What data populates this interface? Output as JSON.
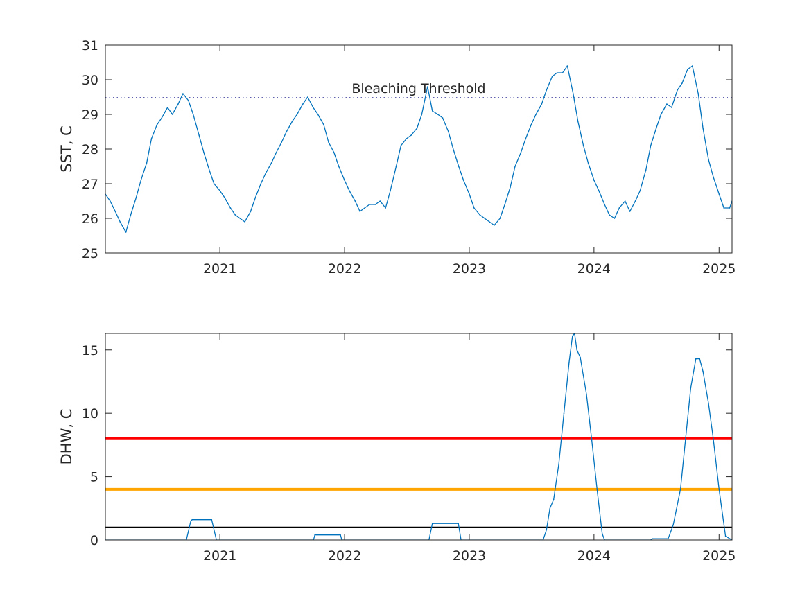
{
  "chart_data": [
    {
      "type": "line",
      "ylabel": "SST, C",
      "xlim": [
        "2020-02-01",
        "2025-02-08"
      ],
      "ylim": [
        25,
        31
      ],
      "x_tick_labels": [
        "2021",
        "2022",
        "2023",
        "2024",
        "2025"
      ],
      "x_tick_dates": [
        "2021-01-01",
        "2022-01-01",
        "2023-01-01",
        "2024-01-01",
        "2025-01-01"
      ],
      "y_ticks": [
        25,
        26,
        27,
        28,
        29,
        30,
        31
      ],
      "grid": false,
      "threshold": {
        "label": "Bleaching Threshold",
        "value": 29.48,
        "style": "dotted",
        "color": "#000080"
      },
      "series": [
        {
          "color": "#0072bd",
          "points": [
            [
              "2020-02-01",
              26.7
            ],
            [
              "2020-02-15",
              26.5
            ],
            [
              "2020-03-01",
              26.2
            ],
            [
              "2020-03-15",
              25.9
            ],
            [
              "2020-04-01",
              25.6
            ],
            [
              "2020-04-15",
              26.1
            ],
            [
              "2020-05-01",
              26.6
            ],
            [
              "2020-05-15",
              27.1
            ],
            [
              "2020-06-01",
              27.6
            ],
            [
              "2020-06-15",
              28.3
            ],
            [
              "2020-07-01",
              28.7
            ],
            [
              "2020-07-15",
              28.9
            ],
            [
              "2020-08-01",
              29.2
            ],
            [
              "2020-08-15",
              29.0
            ],
            [
              "2020-09-01",
              29.3
            ],
            [
              "2020-09-15",
              29.6
            ],
            [
              "2020-10-01",
              29.4
            ],
            [
              "2020-10-15",
              29.0
            ],
            [
              "2020-11-01",
              28.4
            ],
            [
              "2020-11-15",
              27.9
            ],
            [
              "2020-12-01",
              27.4
            ],
            [
              "2020-12-15",
              27.0
            ],
            [
              "2021-01-01",
              26.8
            ],
            [
              "2021-01-15",
              26.6
            ],
            [
              "2021-02-01",
              26.3
            ],
            [
              "2021-02-15",
              26.1
            ],
            [
              "2021-03-01",
              26.0
            ],
            [
              "2021-03-15",
              25.9
            ],
            [
              "2021-04-01",
              26.2
            ],
            [
              "2021-04-15",
              26.6
            ],
            [
              "2021-05-01",
              27.0
            ],
            [
              "2021-05-15",
              27.3
            ],
            [
              "2021-06-01",
              27.6
            ],
            [
              "2021-06-15",
              27.9
            ],
            [
              "2021-07-01",
              28.2
            ],
            [
              "2021-07-15",
              28.5
            ],
            [
              "2021-08-01",
              28.8
            ],
            [
              "2021-08-15",
              29.0
            ],
            [
              "2021-09-01",
              29.3
            ],
            [
              "2021-09-15",
              29.5
            ],
            [
              "2021-10-01",
              29.2
            ],
            [
              "2021-10-15",
              29.0
            ],
            [
              "2021-11-01",
              28.7
            ],
            [
              "2021-11-15",
              28.2
            ],
            [
              "2021-12-01",
              27.9
            ],
            [
              "2021-12-15",
              27.5
            ],
            [
              "2022-01-01",
              27.1
            ],
            [
              "2022-01-15",
              26.8
            ],
            [
              "2022-02-01",
              26.5
            ],
            [
              "2022-02-15",
              26.2
            ],
            [
              "2022-03-01",
              26.3
            ],
            [
              "2022-03-15",
              26.4
            ],
            [
              "2022-04-01",
              26.4
            ],
            [
              "2022-04-15",
              26.5
            ],
            [
              "2022-05-01",
              26.3
            ],
            [
              "2022-05-15",
              26.8
            ],
            [
              "2022-06-01",
              27.5
            ],
            [
              "2022-06-15",
              28.1
            ],
            [
              "2022-07-01",
              28.3
            ],
            [
              "2022-07-15",
              28.4
            ],
            [
              "2022-08-01",
              28.6
            ],
            [
              "2022-08-15",
              29.0
            ],
            [
              "2022-09-01",
              29.8
            ],
            [
              "2022-09-15",
              29.1
            ],
            [
              "2022-10-01",
              29.0
            ],
            [
              "2022-10-15",
              28.9
            ],
            [
              "2022-11-01",
              28.5
            ],
            [
              "2022-11-15",
              28.0
            ],
            [
              "2022-12-01",
              27.5
            ],
            [
              "2022-12-15",
              27.1
            ],
            [
              "2023-01-01",
              26.7
            ],
            [
              "2023-01-15",
              26.3
            ],
            [
              "2023-02-01",
              26.1
            ],
            [
              "2023-02-15",
              26.0
            ],
            [
              "2023-03-01",
              25.9
            ],
            [
              "2023-03-15",
              25.8
            ],
            [
              "2023-04-01",
              26.0
            ],
            [
              "2023-04-15",
              26.4
            ],
            [
              "2023-05-01",
              26.9
            ],
            [
              "2023-05-15",
              27.5
            ],
            [
              "2023-06-01",
              27.9
            ],
            [
              "2023-06-15",
              28.3
            ],
            [
              "2023-07-01",
              28.7
            ],
            [
              "2023-07-15",
              29.0
            ],
            [
              "2023-08-01",
              29.3
            ],
            [
              "2023-08-15",
              29.7
            ],
            [
              "2023-09-01",
              30.1
            ],
            [
              "2023-09-15",
              30.2
            ],
            [
              "2023-10-01",
              30.2
            ],
            [
              "2023-10-15",
              30.4
            ],
            [
              "2023-11-01",
              29.6
            ],
            [
              "2023-11-15",
              28.8
            ],
            [
              "2023-12-01",
              28.1
            ],
            [
              "2023-12-15",
              27.6
            ],
            [
              "2024-01-01",
              27.1
            ],
            [
              "2024-01-15",
              26.8
            ],
            [
              "2024-02-01",
              26.4
            ],
            [
              "2024-02-15",
              26.1
            ],
            [
              "2024-03-01",
              26.0
            ],
            [
              "2024-03-15",
              26.3
            ],
            [
              "2024-04-01",
              26.5
            ],
            [
              "2024-04-15",
              26.2
            ],
            [
              "2024-05-01",
              26.5
            ],
            [
              "2024-05-15",
              26.8
            ],
            [
              "2024-06-01",
              27.4
            ],
            [
              "2024-06-15",
              28.1
            ],
            [
              "2024-07-01",
              28.6
            ],
            [
              "2024-07-15",
              29.0
            ],
            [
              "2024-08-01",
              29.3
            ],
            [
              "2024-08-15",
              29.2
            ],
            [
              "2024-09-01",
              29.7
            ],
            [
              "2024-09-15",
              29.9
            ],
            [
              "2024-10-01",
              30.3
            ],
            [
              "2024-10-15",
              30.4
            ],
            [
              "2024-11-01",
              29.6
            ],
            [
              "2024-11-15",
              28.6
            ],
            [
              "2024-12-01",
              27.7
            ],
            [
              "2024-12-15",
              27.2
            ],
            [
              "2025-01-01",
              26.7
            ],
            [
              "2025-01-15",
              26.3
            ],
            [
              "2025-02-01",
              26.3
            ],
            [
              "2025-02-08",
              26.5
            ]
          ]
        }
      ]
    },
    {
      "type": "line",
      "ylabel": "DHW, C",
      "xlim": [
        "2020-02-01",
        "2025-02-08"
      ],
      "ylim": [
        0,
        16.3
      ],
      "x_tick_labels": [
        "2021",
        "2022",
        "2023",
        "2024",
        "2025"
      ],
      "x_tick_dates": [
        "2021-01-01",
        "2022-01-01",
        "2023-01-01",
        "2024-01-01",
        "2025-01-01"
      ],
      "y_ticks": [
        0,
        5,
        10,
        15
      ],
      "grid": false,
      "reference_lines": [
        {
          "value": 8,
          "color": "#ff0000"
        },
        {
          "value": 4,
          "color": "#ffa500"
        },
        {
          "value": 1,
          "color": "#000000"
        }
      ],
      "series": [
        {
          "color": "#0072bd",
          "points": [
            [
              "2020-02-01",
              0
            ],
            [
              "2020-09-25",
              0
            ],
            [
              "2020-10-08",
              1.5
            ],
            [
              "2020-10-12",
              1.6
            ],
            [
              "2020-12-08",
              1.6
            ],
            [
              "2020-12-22",
              0
            ],
            [
              "2021-10-02",
              0
            ],
            [
              "2021-10-06",
              0.4
            ],
            [
              "2021-12-20",
              0.4
            ],
            [
              "2021-12-24",
              0
            ],
            [
              "2022-09-05",
              0
            ],
            [
              "2022-09-15",
              1.3
            ],
            [
              "2022-11-30",
              1.3
            ],
            [
              "2022-12-08",
              0
            ],
            [
              "2023-08-05",
              0
            ],
            [
              "2023-08-15",
              0.8
            ],
            [
              "2023-08-25",
              2.5
            ],
            [
              "2023-09-05",
              3.2
            ],
            [
              "2023-09-20",
              6.0
            ],
            [
              "2023-10-05",
              10.0
            ],
            [
              "2023-10-20",
              14.0
            ],
            [
              "2023-10-30",
              16.1
            ],
            [
              "2023-11-05",
              16.3
            ],
            [
              "2023-11-12",
              15.0
            ],
            [
              "2023-11-22",
              14.4
            ],
            [
              "2023-12-10",
              11.5
            ],
            [
              "2023-12-25",
              8.0
            ],
            [
              "2024-01-10",
              4.0
            ],
            [
              "2024-01-25",
              0.5
            ],
            [
              "2024-02-01",
              0
            ],
            [
              "2024-06-15",
              0
            ],
            [
              "2024-06-20",
              0.1
            ],
            [
              "2024-08-05",
              0.1
            ],
            [
              "2024-08-20",
              1.2
            ],
            [
              "2024-09-10",
              4.0
            ],
            [
              "2024-09-25",
              8.0
            ],
            [
              "2024-10-10",
              12.0
            ],
            [
              "2024-10-25",
              14.3
            ],
            [
              "2024-11-05",
              14.3
            ],
            [
              "2024-11-15",
              13.3
            ],
            [
              "2024-12-01",
              10.8
            ],
            [
              "2024-12-15",
              8.0
            ],
            [
              "2025-01-01",
              4.0
            ],
            [
              "2025-01-20",
              0.3
            ],
            [
              "2025-02-08",
              0
            ]
          ]
        }
      ]
    }
  ]
}
